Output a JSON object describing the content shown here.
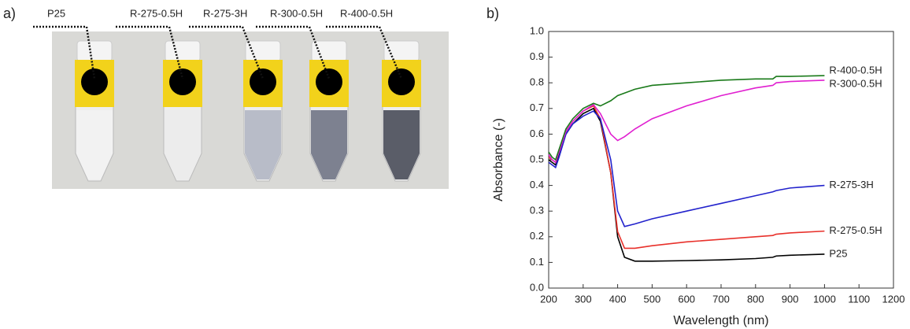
{
  "panel_a": {
    "tag": "a)",
    "labels": [
      "P25",
      "R-275-0.5H",
      "R-275-3H",
      "R-300-0.5H",
      "R-400-0.5H"
    ]
  },
  "chart_data": {
    "type": "line",
    "tag": "b)",
    "x_label": "Wavelength (nm)",
    "y_label": "Absorbance (-)",
    "x": [
      200,
      210,
      220,
      230,
      250,
      270,
      300,
      330,
      350,
      380,
      400,
      420,
      450,
      500,
      600,
      700,
      800,
      850,
      860,
      900,
      1000
    ],
    "series": [
      {
        "name": "P25",
        "color": "#000000",
        "values": [
          0.5,
          0.49,
          0.48,
          0.52,
          0.6,
          0.64,
          0.68,
          0.7,
          0.65,
          0.45,
          0.2,
          0.12,
          0.105,
          0.105,
          0.107,
          0.11,
          0.115,
          0.12,
          0.125,
          0.128,
          0.132
        ]
      },
      {
        "name": "R-275-0.5H",
        "color": "#e8312b",
        "values": [
          0.51,
          0.5,
          0.49,
          0.53,
          0.61,
          0.65,
          0.69,
          0.71,
          0.66,
          0.45,
          0.22,
          0.155,
          0.155,
          0.165,
          0.18,
          0.19,
          0.2,
          0.205,
          0.21,
          0.215,
          0.222
        ]
      },
      {
        "name": "R-275-3H",
        "color": "#2222cc",
        "values": [
          0.49,
          0.48,
          0.47,
          0.51,
          0.6,
          0.64,
          0.67,
          0.69,
          0.66,
          0.5,
          0.3,
          0.24,
          0.25,
          0.27,
          0.3,
          0.33,
          0.36,
          0.375,
          0.38,
          0.39,
          0.4
        ]
      },
      {
        "name": "R-300-0.5H",
        "color": "#e020d0",
        "values": [
          0.52,
          0.5,
          0.49,
          0.53,
          0.61,
          0.65,
          0.69,
          0.715,
          0.68,
          0.6,
          0.575,
          0.59,
          0.62,
          0.66,
          0.71,
          0.75,
          0.78,
          0.79,
          0.8,
          0.805,
          0.81
        ]
      },
      {
        "name": "R-400-0.5H",
        "color": "#1a7a1a",
        "values": [
          0.53,
          0.51,
          0.5,
          0.54,
          0.62,
          0.66,
          0.7,
          0.72,
          0.71,
          0.73,
          0.75,
          0.76,
          0.775,
          0.79,
          0.8,
          0.81,
          0.815,
          0.815,
          0.825,
          0.825,
          0.828
        ]
      }
    ],
    "xlim": [
      200,
      1200
    ],
    "ylim": [
      0,
      1
    ],
    "xticks": [
      200,
      300,
      400,
      500,
      600,
      700,
      800,
      900,
      1000,
      1100,
      1200
    ],
    "yticks": [
      {
        "value": 0,
        "label": "0.0"
      },
      0.1,
      0.2,
      0.3,
      0.4,
      0.5,
      0.6,
      0.7,
      0.8,
      0.9,
      {
        "value": 1,
        "label": "1.0"
      }
    ]
  }
}
